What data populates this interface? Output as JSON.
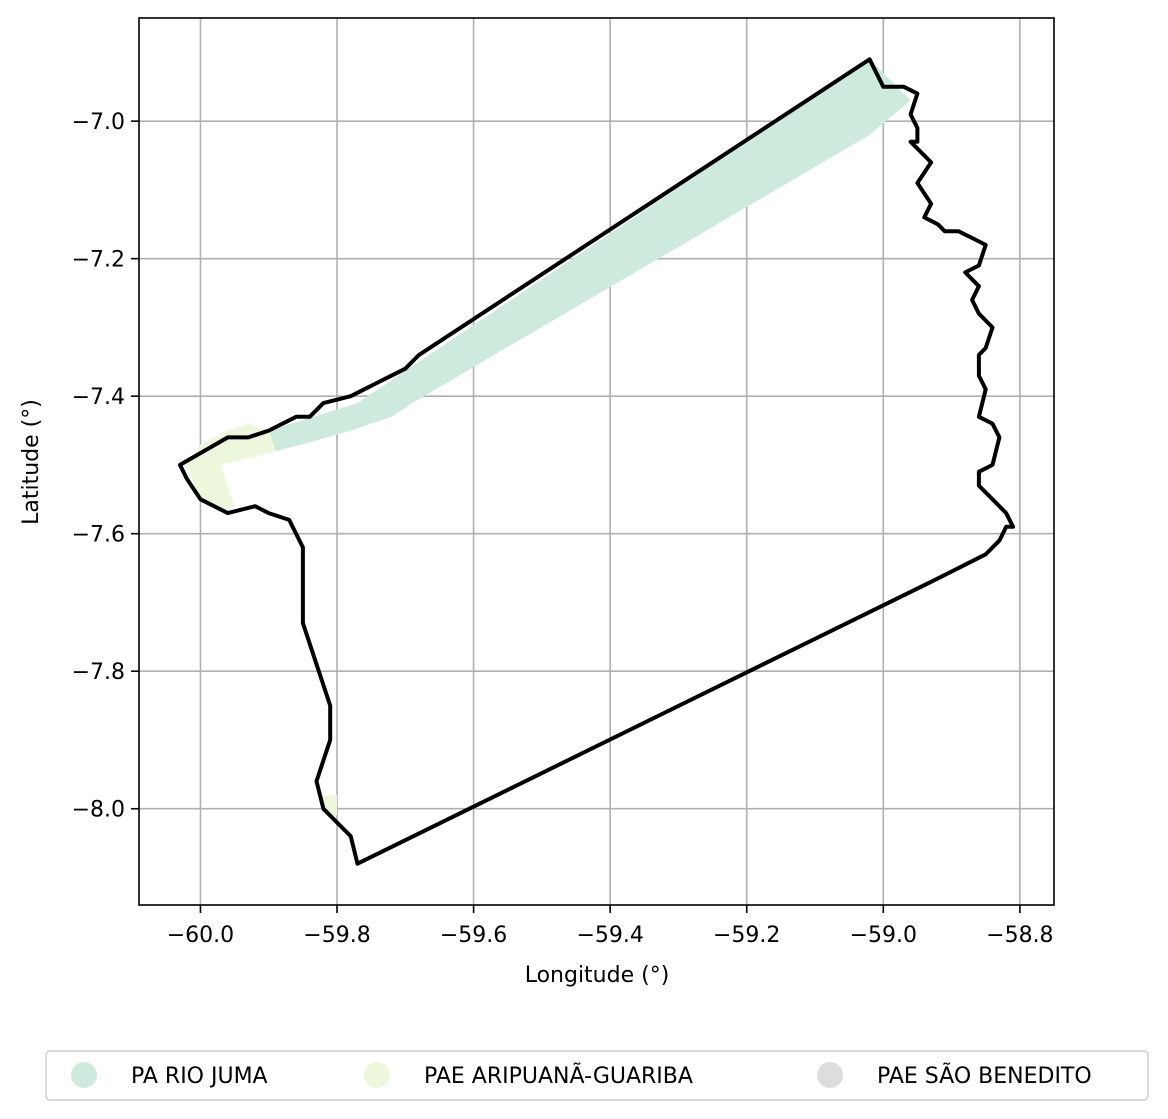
{
  "chart_data": {
    "type": "map",
    "xlabel": "Longitude (°)",
    "ylabel": "Latitude (°)",
    "xlim": [
      -60.09,
      -58.75
    ],
    "ylim": [
      -8.14,
      -6.85
    ],
    "grid": true,
    "x_ticks": [
      {
        "value": -60.0,
        "label": "−60.0"
      },
      {
        "value": -59.8,
        "label": "−59.8"
      },
      {
        "value": -59.6,
        "label": "−59.6"
      },
      {
        "value": -59.4,
        "label": "−59.4"
      },
      {
        "value": -59.2,
        "label": "−59.2"
      },
      {
        "value": -59.0,
        "label": "−59.0"
      },
      {
        "value": -58.8,
        "label": "−58.8"
      }
    ],
    "y_ticks": [
      {
        "value": -7.0,
        "label": "−7.0"
      },
      {
        "value": -7.2,
        "label": "−7.2"
      },
      {
        "value": -7.4,
        "label": "−7.4"
      },
      {
        "value": -7.6,
        "label": "−7.6"
      },
      {
        "value": -7.8,
        "label": "−7.8"
      },
      {
        "value": -8.0,
        "label": "−8.0"
      }
    ],
    "legend_position": "bottom",
    "legend": [
      {
        "name": "PA RIO JUMA",
        "color": "#cdeadc"
      },
      {
        "name": "PAE ARIPUANÃ-GUARIBA",
        "color": "#ecf7dc"
      },
      {
        "name": "PAE SÃO BENEDITO",
        "color": "#dddddd"
      }
    ],
    "areas": [
      {
        "name": "PA RIO JUMA",
        "color": "#cdeadc",
        "coords": [
          [
            -59.9,
            -7.45
          ],
          [
            -59.77,
            -7.41
          ],
          [
            -59.68,
            -7.35
          ],
          [
            -59.02,
            -6.91
          ],
          [
            -58.96,
            -6.97
          ],
          [
            -59.02,
            -7.02
          ],
          [
            -59.69,
            -7.41
          ],
          [
            -59.72,
            -7.43
          ],
          [
            -59.78,
            -7.45
          ],
          [
            -59.85,
            -7.47
          ],
          [
            -59.89,
            -7.48
          ]
        ]
      },
      {
        "name": "PAE ARIPUANÃ-GUARIBA",
        "color": "#ecf7dc",
        "coords": [
          [
            -59.9,
            -7.45
          ],
          [
            -59.89,
            -7.48
          ],
          [
            -59.97,
            -7.5
          ],
          [
            -59.95,
            -7.56
          ],
          [
            -59.97,
            -7.57
          ],
          [
            -60.0,
            -7.55
          ],
          [
            -60.02,
            -7.5
          ],
          [
            -60.0,
            -7.47
          ],
          [
            -59.96,
            -7.45
          ],
          [
            -59.93,
            -7.44
          ]
        ]
      },
      {
        "name": "PAE ARIPUANÃ-GUARIBA",
        "color": "#ecf7dc",
        "coords": [
          [
            -59.82,
            -7.98
          ],
          [
            -59.8,
            -7.98
          ],
          [
            -59.8,
            -8.01
          ],
          [
            -59.82,
            -8.01
          ]
        ]
      }
    ],
    "boundary": [
      [
        -60.03,
        -7.5
      ],
      [
        -59.96,
        -7.46
      ],
      [
        -59.94,
        -7.46
      ],
      [
        -59.93,
        -7.46
      ],
      [
        -59.9,
        -7.45
      ],
      [
        -59.86,
        -7.43
      ],
      [
        -59.84,
        -7.43
      ],
      [
        -59.82,
        -7.41
      ],
      [
        -59.78,
        -7.4
      ],
      [
        -59.76,
        -7.39
      ],
      [
        -59.74,
        -7.38
      ],
      [
        -59.72,
        -7.37
      ],
      [
        -59.7,
        -7.36
      ],
      [
        -59.68,
        -7.34
      ],
      [
        -59.02,
        -6.91
      ],
      [
        -59.0,
        -6.95
      ],
      [
        -58.97,
        -6.95
      ],
      [
        -58.95,
        -6.96
      ],
      [
        -58.96,
        -6.99
      ],
      [
        -58.95,
        -7.01
      ],
      [
        -58.95,
        -7.03
      ],
      [
        -58.96,
        -7.03
      ],
      [
        -58.94,
        -7.05
      ],
      [
        -58.93,
        -7.06
      ],
      [
        -58.95,
        -7.09
      ],
      [
        -58.93,
        -7.12
      ],
      [
        -58.94,
        -7.14
      ],
      [
        -58.92,
        -7.15
      ],
      [
        -58.91,
        -7.16
      ],
      [
        -58.89,
        -7.16
      ],
      [
        -58.87,
        -7.17
      ],
      [
        -58.85,
        -7.18
      ],
      [
        -58.86,
        -7.21
      ],
      [
        -58.88,
        -7.22
      ],
      [
        -58.86,
        -7.24
      ],
      [
        -58.87,
        -7.26
      ],
      [
        -58.86,
        -7.28
      ],
      [
        -58.85,
        -7.29
      ],
      [
        -58.84,
        -7.3
      ],
      [
        -58.85,
        -7.33
      ],
      [
        -58.86,
        -7.34
      ],
      [
        -58.86,
        -7.37
      ],
      [
        -58.85,
        -7.39
      ],
      [
        -58.86,
        -7.43
      ],
      [
        -58.84,
        -7.44
      ],
      [
        -58.83,
        -7.46
      ],
      [
        -58.84,
        -7.5
      ],
      [
        -58.86,
        -7.51
      ],
      [
        -58.86,
        -7.53
      ],
      [
        -58.84,
        -7.55
      ],
      [
        -58.82,
        -7.57
      ],
      [
        -58.81,
        -7.59
      ],
      [
        -58.82,
        -7.59
      ],
      [
        -58.83,
        -7.61
      ],
      [
        -58.85,
        -7.63
      ],
      [
        -58.87,
        -7.64
      ],
      [
        -58.91,
        -7.66
      ],
      [
        -58.93,
        -7.67
      ],
      [
        -59.77,
        -8.08
      ],
      [
        -59.78,
        -8.04
      ],
      [
        -59.8,
        -8.02
      ],
      [
        -59.82,
        -8.0
      ],
      [
        -59.83,
        -7.96
      ],
      [
        -59.81,
        -7.9
      ],
      [
        -59.81,
        -7.85
      ],
      [
        -59.83,
        -7.79
      ],
      [
        -59.85,
        -7.73
      ],
      [
        -59.85,
        -7.68
      ],
      [
        -59.85,
        -7.62
      ],
      [
        -59.87,
        -7.58
      ],
      [
        -59.9,
        -7.57
      ],
      [
        -59.92,
        -7.56
      ],
      [
        -59.96,
        -7.57
      ],
      [
        -60.0,
        -7.55
      ],
      [
        -60.02,
        -7.52
      ]
    ]
  }
}
